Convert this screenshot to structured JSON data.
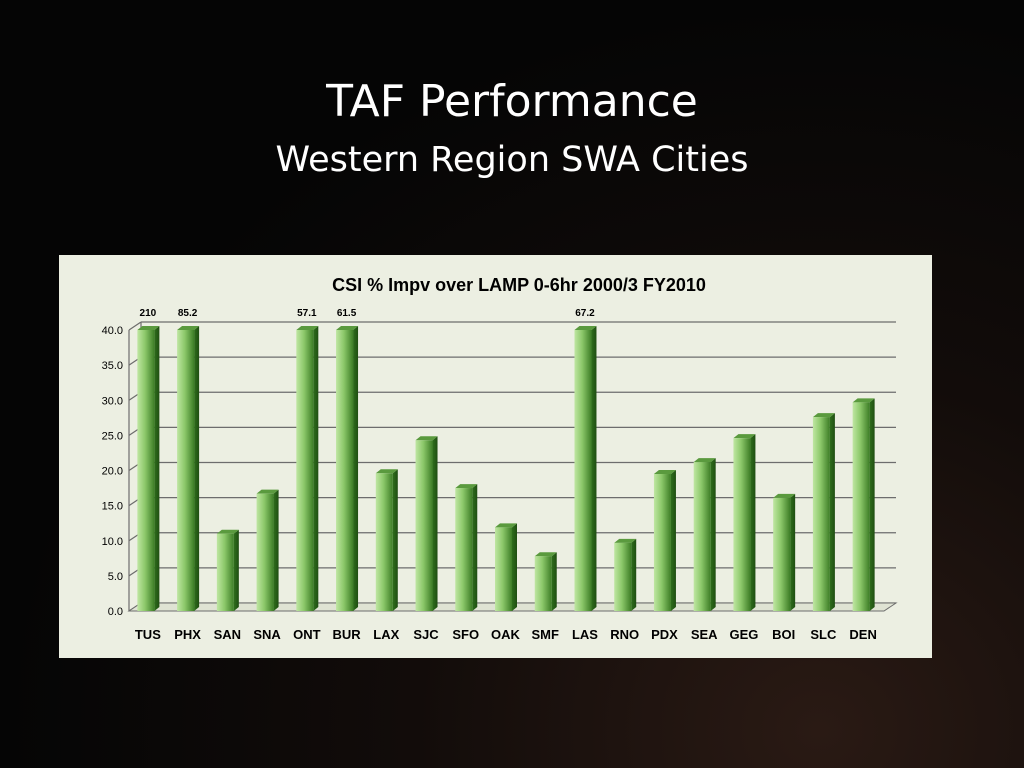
{
  "slide": {
    "title": "TAF Performance",
    "subtitle": "Western Region SWA Cities"
  },
  "chart_data": {
    "type": "bar",
    "title": "CSI % Impv over LAMP   0-6hr  2000/3 FY2010",
    "xlabel": "",
    "ylabel": "",
    "ylim": [
      0,
      40
    ],
    "yticks": [
      "0.0",
      "5.0",
      "10.0",
      "15.0",
      "20.0",
      "25.0",
      "30.0",
      "35.0",
      "40.0"
    ],
    "grid": true,
    "categories": [
      "TUS",
      "PHX",
      "SAN",
      "SNA",
      "ONT",
      "BUR",
      "LAX",
      "SJC",
      "SFO",
      "OAK",
      "SMF",
      "LAS",
      "RNO",
      "PDX",
      "SEA",
      "GEG",
      "BOI",
      "SLC",
      "DEN"
    ],
    "values": [
      210,
      85.2,
      11.0,
      16.7,
      57.1,
      61.5,
      19.6,
      24.3,
      17.5,
      11.9,
      7.8,
      67.2,
      9.7,
      19.5,
      21.2,
      24.6,
      16.1,
      27.6,
      29.7
    ],
    "data_labels": [
      "210",
      "85.2",
      "",
      "",
      "57.1",
      "61.5",
      "",
      "",
      "",
      "",
      "",
      "67.2",
      "",
      "",
      "",
      "",
      "",
      "",
      ""
    ],
    "colors": {
      "bar_light": "#a9d98a",
      "bar_dark": "#2f6e1c",
      "bar_top": "#5a9a3e",
      "grid": "#6d6d6d",
      "panel": "#ecefe2"
    }
  }
}
